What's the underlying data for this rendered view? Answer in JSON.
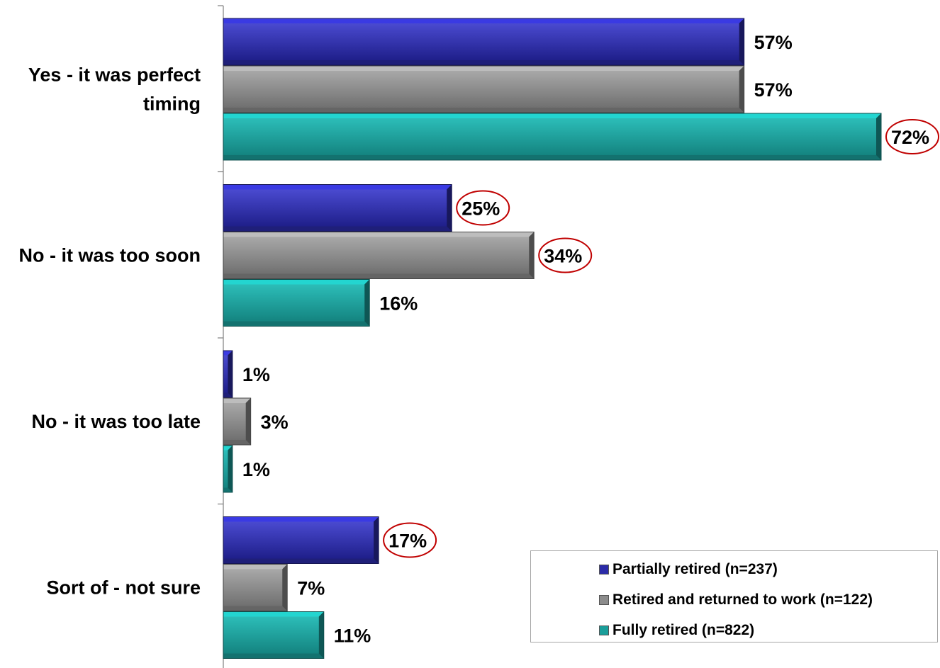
{
  "chart_data": {
    "type": "bar",
    "orientation": "horizontal",
    "categories": [
      "Yes - it was perfect timing",
      "No - it was too soon",
      "No - it was too late",
      "Sort of - not sure"
    ],
    "category_lines": [
      [
        "Yes - it was perfect",
        "timing"
      ],
      [
        "No - it was too soon"
      ],
      [
        "No - it was too late"
      ],
      [
        "Sort of - not sure"
      ]
    ],
    "series": [
      {
        "name": "Partially retired (n=237)",
        "color": "#2b2ba8",
        "values": [
          57,
          25,
          1,
          17
        ],
        "labels": [
          "57%",
          "25%",
          "1%",
          "17%"
        ],
        "circled": [
          false,
          true,
          false,
          true
        ]
      },
      {
        "name": "Retired and returned to work (n=122)",
        "color": "#8c8c8c",
        "values": [
          57,
          34,
          3,
          7
        ],
        "labels": [
          "57%",
          "34%",
          "3%",
          "7%"
        ],
        "circled": [
          false,
          true,
          false,
          false
        ]
      },
      {
        "name": "Fully retired (n=822)",
        "color": "#1a9e9a",
        "values": [
          72,
          16,
          1,
          11
        ],
        "labels": [
          "72%",
          "16%",
          "1%",
          "11%"
        ],
        "circled": [
          true,
          false,
          false,
          false
        ]
      }
    ],
    "xlim": [
      0,
      72
    ],
    "grid": false,
    "legend_position": "bottom-right",
    "annotation_color": "#c00000"
  }
}
